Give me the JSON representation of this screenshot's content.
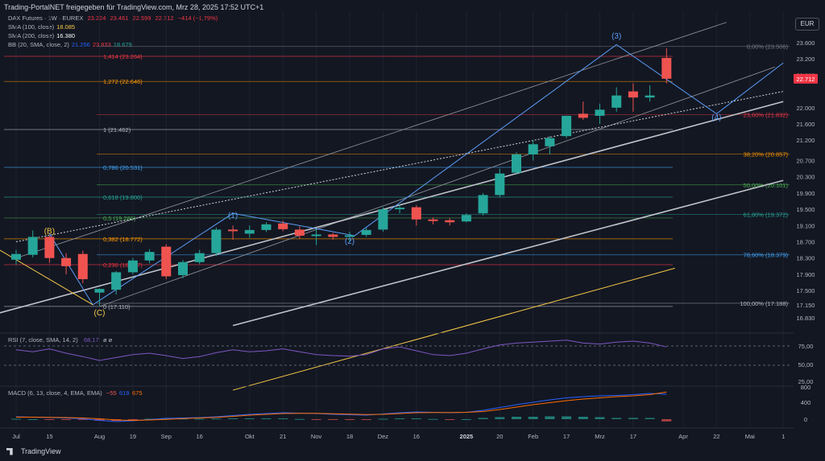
{
  "header": {
    "title_line": "Trading-PortalNET freigegeben für TradingView.com, Mrz 28, 2025 17:52 UTC+1",
    "symbol_line": "DAX Futures · 1W · EUREX",
    "ohlc": "O23.224  H23.461  L22.599  C22.712  −414 (−1,79%)",
    "ohlc_o": "23.224",
    "ohlc_h": "23.461",
    "ohlc_l": "22.599",
    "ohlc_c": "22.712",
    "ohlc_chg": "−414 (−1,79%)"
  },
  "indicators": {
    "sma100_label": "SMA (100, close)",
    "sma100_value": "18.085",
    "sma200_label": "SMA (200, close)",
    "sma200_value": "16.380",
    "bb_label": "BB (20, SMA, close, 2)",
    "bb_v1": "21.256",
    "bb_v2": "23.833",
    "bb_v3": "18.679"
  },
  "currency": "EUR",
  "footer_brand": "TradingView",
  "colors": {
    "up": "#26a69a",
    "down": "#ef5350",
    "bg": "#131722",
    "grid": "#1e222d",
    "sma100": "#f7c948",
    "rsi": "#7e57c2",
    "macd": "#2962ff",
    "signal": "#ff6d00",
    "price_tag": "#f23645"
  },
  "chart_data": {
    "type": "candlestick",
    "price_axis_ticks": [
      "23.600",
      "23.200",
      "22.800",
      "22.000",
      "21.600",
      "21.200",
      "20.700",
      "20.300",
      "19.900",
      "19.500",
      "19.100",
      "18.700",
      "18.300",
      "17.900",
      "17.500",
      "17.150",
      "16.830"
    ],
    "current_price": "22.712",
    "x_labels": [
      {
        "t": "Jul",
        "i": 0
      },
      {
        "t": "15",
        "i": 2
      },
      {
        "t": "Aug",
        "i": 5
      },
      {
        "t": "19",
        "i": 7
      },
      {
        "t": "Sep",
        "i": 9
      },
      {
        "t": "16",
        "i": 11
      },
      {
        "t": "Okt",
        "i": 14
      },
      {
        "t": "21",
        "i": 16
      },
      {
        "t": "Nov",
        "i": 18
      },
      {
        "t": "18",
        "i": 20
      },
      {
        "t": "Dez",
        "i": 22
      },
      {
        "t": "16",
        "i": 24
      },
      {
        "t": "2025",
        "i": 27
      },
      {
        "t": "20",
        "i": 29
      },
      {
        "t": "Feb",
        "i": 31
      },
      {
        "t": "17",
        "i": 33
      },
      {
        "t": "Mrz",
        "i": 35
      },
      {
        "t": "17",
        "i": 37
      },
      {
        "t": "Apr",
        "i": 40
      },
      {
        "t": "22",
        "i": 42
      },
      {
        "t": "Mai",
        "i": 44
      },
      {
        "t": "1",
        "i": 46
      }
    ],
    "candles": [
      {
        "o": 18260,
        "h": 18500,
        "l": 18140,
        "c": 18400
      },
      {
        "o": 18380,
        "h": 18980,
        "l": 18320,
        "c": 18820
      },
      {
        "o": 18820,
        "h": 18850,
        "l": 18180,
        "c": 18300
      },
      {
        "o": 18300,
        "h": 18420,
        "l": 17900,
        "c": 18100
      },
      {
        "o": 18400,
        "h": 18480,
        "l": 17680,
        "c": 17780
      },
      {
        "o": 17450,
        "h": 17550,
        "l": 17130,
        "c": 17540
      },
      {
        "o": 17520,
        "h": 17980,
        "l": 17400,
        "c": 17950
      },
      {
        "o": 17950,
        "h": 18300,
        "l": 17900,
        "c": 18240
      },
      {
        "o": 18240,
        "h": 18520,
        "l": 18170,
        "c": 18450
      },
      {
        "o": 18580,
        "h": 18640,
        "l": 17780,
        "c": 17850
      },
      {
        "o": 17880,
        "h": 18250,
        "l": 17800,
        "c": 18200
      },
      {
        "o": 18200,
        "h": 18500,
        "l": 18150,
        "c": 18420
      },
      {
        "o": 18420,
        "h": 19050,
        "l": 18350,
        "c": 19000
      },
      {
        "o": 19000,
        "h": 19100,
        "l": 18750,
        "c": 18980
      },
      {
        "o": 18900,
        "h": 19100,
        "l": 18800,
        "c": 18990
      },
      {
        "o": 18990,
        "h": 19180,
        "l": 18940,
        "c": 19130
      },
      {
        "o": 19150,
        "h": 19220,
        "l": 18960,
        "c": 19010
      },
      {
        "o": 19000,
        "h": 19080,
        "l": 18780,
        "c": 18850
      },
      {
        "o": 18850,
        "h": 19020,
        "l": 18620,
        "c": 18880
      },
      {
        "o": 18880,
        "h": 18920,
        "l": 18750,
        "c": 18820
      },
      {
        "o": 18820,
        "h": 18950,
        "l": 18700,
        "c": 18860
      },
      {
        "o": 18870,
        "h": 19050,
        "l": 18820,
        "c": 18990
      },
      {
        "o": 19000,
        "h": 19550,
        "l": 18950,
        "c": 19500
      },
      {
        "o": 19500,
        "h": 19620,
        "l": 19400,
        "c": 19540
      },
      {
        "o": 19550,
        "h": 19600,
        "l": 19100,
        "c": 19250
      },
      {
        "o": 19250,
        "h": 19300,
        "l": 19130,
        "c": 19220
      },
      {
        "o": 19230,
        "h": 19280,
        "l": 19100,
        "c": 19180
      },
      {
        "o": 19200,
        "h": 19400,
        "l": 19180,
        "c": 19360
      },
      {
        "o": 19400,
        "h": 19900,
        "l": 19350,
        "c": 19850
      },
      {
        "o": 19850,
        "h": 20500,
        "l": 19800,
        "c": 20380
      },
      {
        "o": 20400,
        "h": 20900,
        "l": 20350,
        "c": 20850
      },
      {
        "o": 20850,
        "h": 21200,
        "l": 20700,
        "c": 21100
      },
      {
        "o": 21050,
        "h": 21300,
        "l": 20850,
        "c": 21250
      },
      {
        "o": 21300,
        "h": 21800,
        "l": 21250,
        "c": 21800
      },
      {
        "o": 21850,
        "h": 22150,
        "l": 21700,
        "c": 21750
      },
      {
        "o": 21800,
        "h": 22100,
        "l": 21600,
        "c": 21950
      },
      {
        "o": 22000,
        "h": 22500,
        "l": 21900,
        "c": 22300
      },
      {
        "o": 22400,
        "h": 22600,
        "l": 21900,
        "c": 22250
      },
      {
        "o": 22250,
        "h": 22550,
        "l": 22150,
        "c": 22300
      },
      {
        "o": 23224,
        "h": 23461,
        "l": 22599,
        "c": 22712
      }
    ],
    "fib_left": [
      {
        "label": "1,414 (23.264)",
        "v": 23264,
        "color": "#f23645"
      },
      {
        "label": "1,272 (22.646)",
        "v": 22646,
        "color": "#ff9800"
      },
      {
        "label": "1 (21.462)",
        "v": 21462,
        "color": "#b2b5be"
      },
      {
        "label": "0,786 (20.531)",
        "v": 20531,
        "color": "#42a5f5"
      },
      {
        "label": "0,618 (19.800)",
        "v": 19800,
        "color": "#26a69a"
      },
      {
        "label": "0,5 (19.286)",
        "v": 19286,
        "color": "#4caf50"
      },
      {
        "label": "0,382 (18.772)",
        "v": 18772,
        "color": "#ff9800"
      },
      {
        "label": "0,236 (18.137)",
        "v": 18137,
        "color": "#f23645"
      },
      {
        "label": "0 (17.110)",
        "v": 17110,
        "color": "#b2b5be"
      }
    ],
    "fib_right": [
      {
        "label": "0,00% (23.506)",
        "v": 23506,
        "color": "#787b86"
      },
      {
        "label": "23,60% (21.832)",
        "v": 21832,
        "color": "#f23645"
      },
      {
        "label": "38,20% (20.857)",
        "v": 20857,
        "color": "#ff9800"
      },
      {
        "label": "50,00% (20.101)",
        "v": 20101,
        "color": "#4caf50"
      },
      {
        "label": "61,80% (19.372)",
        "v": 19372,
        "color": "#26a69a"
      },
      {
        "label": "78,60% (18.379)",
        "v": 18379,
        "color": "#42a5f5"
      },
      {
        "label": "100,00% (17.188)",
        "v": 17188,
        "color": "#b2b5be"
      }
    ],
    "waves": [
      {
        "label": "(B)",
        "i": 2,
        "v": 18900,
        "color": "#f7c948"
      },
      {
        "label": "(C)",
        "i": 5,
        "v": 16890,
        "color": "#f7c948"
      },
      {
        "label": "(1)",
        "i": 13,
        "v": 19280,
        "color": "#5b9cf6"
      },
      {
        "label": "(2)",
        "i": 20,
        "v": 18650,
        "color": "#5b9cf6"
      },
      {
        "label": "(3)",
        "i": 36,
        "v": 23700,
        "color": "#5b9cf6"
      },
      {
        "label": "(4)",
        "i": 42,
        "v": 21700,
        "color": "#5b9cf6"
      }
    ],
    "rsi": {
      "label": "RSI (7, close, SMA, 14, 2)",
      "value": "68,17",
      "extra": "ø ø",
      "ticks": [
        "75,00",
        "50,00",
        "25,00"
      ],
      "levels": [
        70,
        30
      ],
      "values": [
        62,
        58,
        64,
        55,
        48,
        40,
        46,
        52,
        55,
        50,
        44,
        48,
        56,
        62,
        58,
        60,
        64,
        58,
        52,
        50,
        49,
        52,
        64,
        68,
        60,
        52,
        50,
        55,
        64,
        72,
        76,
        78,
        80,
        82,
        76,
        74,
        78,
        80,
        76,
        68
      ]
    },
    "macd": {
      "label": "MACD (6, 13, close, 4, EMA, EMA)",
      "v_hist": "−55",
      "v_macd": "619",
      "v_signal": "675",
      "ticks": [
        "800",
        "400",
        "0"
      ],
      "macd_line": [
        60,
        50,
        40,
        30,
        10,
        -30,
        -60,
        -40,
        -10,
        20,
        30,
        40,
        60,
        90,
        120,
        140,
        160,
        150,
        140,
        120,
        110,
        100,
        130,
        160,
        180,
        170,
        160,
        170,
        220,
        290,
        360,
        420,
        480,
        530,
        560,
        580,
        590,
        610,
        640,
        619
      ],
      "signal_line": [
        50,
        50,
        45,
        40,
        30,
        10,
        -20,
        -30,
        -20,
        -5,
        15,
        30,
        45,
        70,
        100,
        120,
        140,
        145,
        145,
        135,
        125,
        115,
        120,
        140,
        160,
        165,
        165,
        170,
        190,
        240,
        300,
        360,
        410,
        460,
        500,
        530,
        560,
        580,
        610,
        675
      ],
      "hist": [
        10,
        0,
        -5,
        -10,
        -20,
        -40,
        -40,
        -10,
        10,
        25,
        15,
        10,
        15,
        20,
        20,
        20,
        20,
        5,
        -5,
        -15,
        -15,
        -15,
        10,
        20,
        20,
        5,
        -5,
        0,
        30,
        50,
        60,
        60,
        70,
        70,
        60,
        50,
        30,
        30,
        30,
        -55
      ]
    }
  }
}
